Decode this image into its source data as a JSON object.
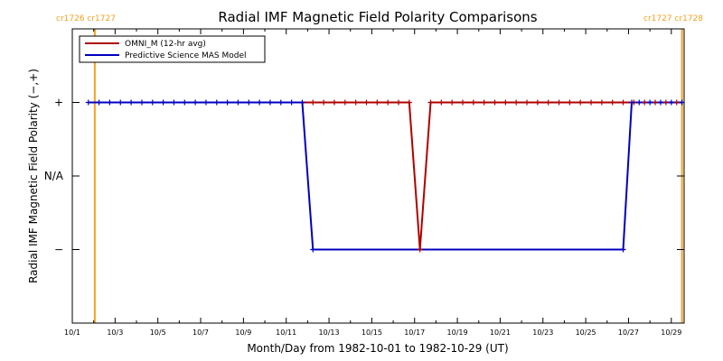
{
  "chart_data": {
    "type": "line",
    "title": "Radial IMF Magnetic Field Polarity Comparisons",
    "xlabel": "Month/Day from 1982-10-01 to 1982-10-29 (UT)",
    "ylabel": "Radial IMF Magnetic Field Polarity (−,+)",
    "x_domain_days": [
      0,
      28.6
    ],
    "y_domain": [
      -2,
      2
    ],
    "x_ticks": [
      {
        "day": 0,
        "label": "10/1"
      },
      {
        "day": 2,
        "label": "10/3"
      },
      {
        "day": 4,
        "label": "10/5"
      },
      {
        "day": 6,
        "label": "10/7"
      },
      {
        "day": 8,
        "label": "10/9"
      },
      {
        "day": 10,
        "label": "10/11"
      },
      {
        "day": 12,
        "label": "10/13"
      },
      {
        "day": 14,
        "label": "10/15"
      },
      {
        "day": 16,
        "label": "10/17"
      },
      {
        "day": 18,
        "label": "10/19"
      },
      {
        "day": 20,
        "label": "10/21"
      },
      {
        "day": 22,
        "label": "10/23"
      },
      {
        "day": 24,
        "label": "10/25"
      },
      {
        "day": 26,
        "label": "10/27"
      },
      {
        "day": 28,
        "label": "10/29"
      }
    ],
    "y_ticks": [
      {
        "value": 1,
        "label": "+"
      },
      {
        "value": 0,
        "label": "N/A"
      },
      {
        "value": -1,
        "label": "−"
      }
    ],
    "carrington_markers": [
      {
        "day": 1.05,
        "label": "cr1726 cr1727"
      },
      {
        "day": 28.5,
        "label": "cr1727 cr1728"
      }
    ],
    "legend_position": "top-left",
    "series": [
      {
        "name": "OMNI_M (12-hr avg)",
        "color": "#b00000",
        "markers": "plus",
        "markers_from_day": 11.25,
        "points": [
          [
            0.75,
            1
          ],
          [
            11.25,
            1
          ],
          [
            11.75,
            1
          ],
          [
            12.25,
            1
          ],
          [
            12.75,
            1
          ],
          [
            13.25,
            1
          ],
          [
            13.75,
            1
          ],
          [
            14.25,
            1
          ],
          [
            14.75,
            1
          ],
          [
            15.25,
            1
          ],
          [
            15.75,
            1
          ],
          [
            16.25,
            -1
          ],
          [
            16.75,
            1
          ],
          [
            17.25,
            1
          ],
          [
            17.75,
            1
          ],
          [
            18.25,
            1
          ],
          [
            18.75,
            1
          ],
          [
            19.25,
            1
          ],
          [
            19.75,
            1
          ],
          [
            20.25,
            1
          ],
          [
            20.75,
            1
          ],
          [
            21.25,
            1
          ],
          [
            21.75,
            1
          ],
          [
            22.25,
            1
          ],
          [
            22.75,
            1
          ],
          [
            23.25,
            1
          ],
          [
            23.75,
            1
          ],
          [
            24.25,
            1
          ],
          [
            24.75,
            1
          ],
          [
            25.25,
            1
          ],
          [
            25.75,
            1
          ],
          [
            26.25,
            1
          ],
          [
            26.75,
            1
          ],
          [
            27.25,
            1
          ],
          [
            27.75,
            1
          ],
          [
            28.25,
            1
          ]
        ]
      },
      {
        "name": "Predictive Science MAS Model",
        "color": "#0000c0",
        "markers": "plus",
        "points": [
          [
            0.75,
            1
          ],
          [
            1.25,
            1
          ],
          [
            1.75,
            1
          ],
          [
            2.25,
            1
          ],
          [
            2.75,
            1
          ],
          [
            3.25,
            1
          ],
          [
            3.75,
            1
          ],
          [
            4.25,
            1
          ],
          [
            4.75,
            1
          ],
          [
            5.25,
            1
          ],
          [
            5.75,
            1
          ],
          [
            6.25,
            1
          ],
          [
            6.75,
            1
          ],
          [
            7.25,
            1
          ],
          [
            7.75,
            1
          ],
          [
            8.25,
            1
          ],
          [
            8.75,
            1
          ],
          [
            9.25,
            1
          ],
          [
            9.75,
            1
          ],
          [
            10.25,
            1
          ],
          [
            10.75,
            1
          ],
          [
            11.25,
            -1
          ],
          [
            25.75,
            -1
          ],
          [
            26.15,
            1
          ],
          [
            26.5,
            1
          ],
          [
            27,
            1
          ],
          [
            27.5,
            1
          ],
          [
            28,
            1
          ],
          [
            28.5,
            1
          ]
        ]
      }
    ]
  },
  "colors": {
    "axis": "#000000",
    "carrington_line": "#f5a020",
    "carrington_text": "#f5a020",
    "background": "#ffffff"
  }
}
